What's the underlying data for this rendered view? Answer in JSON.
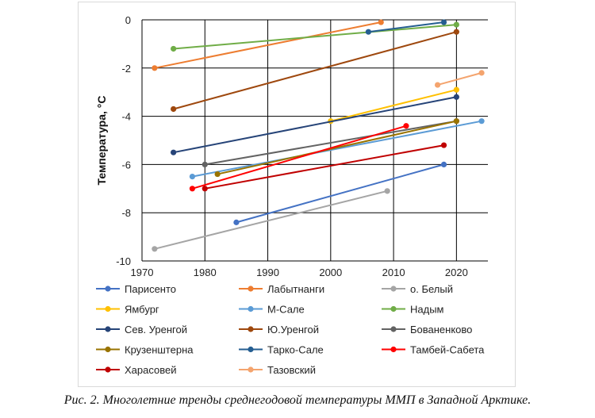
{
  "chart_data": {
    "type": "line",
    "title": "",
    "xlabel": "",
    "ylabel": "Температура, °C",
    "xlim": [
      1970,
      2025
    ],
    "ylim": [
      -10,
      0
    ],
    "xticks": [
      "1970",
      "1980",
      "1990",
      "2000",
      "2010",
      "2020"
    ],
    "yticks": [
      "0",
      "-2",
      "-4",
      "-6",
      "-8",
      "-10"
    ],
    "grid": "vertical and horizontal",
    "legend_position": "bottom",
    "series": [
      {
        "name": "Парисенто",
        "color": "#4472c4",
        "x": [
          1985,
          2018
        ],
        "y": [
          -8.4,
          -6.0
        ]
      },
      {
        "name": "Лабытнанги",
        "color": "#ed7d31",
        "x": [
          1972,
          2008
        ],
        "y": [
          -2.0,
          -0.1
        ]
      },
      {
        "name": "о. Белый",
        "color": "#a5a5a5",
        "x": [
          1972,
          2009
        ],
        "y": [
          -9.5,
          -7.1
        ]
      },
      {
        "name": "Ямбург",
        "color": "#ffc000",
        "x": [
          2000,
          2020
        ],
        "y": [
          -4.2,
          -2.9
        ]
      },
      {
        "name": "М-Сале",
        "color": "#5b9bd5",
        "x": [
          1978,
          2024
        ],
        "y": [
          -6.5,
          -4.2
        ]
      },
      {
        "name": "Надым",
        "color": "#70ad47",
        "x": [
          1975,
          2020
        ],
        "y": [
          -1.2,
          -0.2
        ]
      },
      {
        "name": "Сев. Уренгой",
        "color": "#264478",
        "x": [
          1975,
          2020
        ],
        "y": [
          -5.5,
          -3.2
        ]
      },
      {
        "name": "Ю.Уренгой",
        "color": "#9e480e",
        "x": [
          1975,
          2020
        ],
        "y": [
          -3.7,
          -0.5
        ]
      },
      {
        "name": "Бованенково",
        "color": "#636363",
        "x": [
          1980,
          2020
        ],
        "y": [
          -6.0,
          -4.2
        ]
      },
      {
        "name": "Крузенштерна",
        "color": "#997300",
        "x": [
          1982,
          2020
        ],
        "y": [
          -6.4,
          -4.2
        ]
      },
      {
        "name": "Тарко-Сале",
        "color": "#255e91",
        "x": [
          2006,
          2018
        ],
        "y": [
          -0.5,
          -0.1
        ]
      },
      {
        "name": "Тамбей-Сабета",
        "color": "#ff0000",
        "x": [
          1978,
          2012
        ],
        "y": [
          -7.0,
          -4.4
        ]
      },
      {
        "name": "Харасовей",
        "color": "#c00000",
        "x": [
          1980,
          2018
        ],
        "y": [
          -7.0,
          -5.2
        ]
      },
      {
        "name": "Тазовский",
        "color": "#f4a46e",
        "x": [
          2017,
          2024
        ],
        "y": [
          -2.7,
          -2.2
        ]
      }
    ]
  },
  "caption": "Рис. 2. Многолетние тренды среднегодовой температуры ММП в Западной Арктике."
}
